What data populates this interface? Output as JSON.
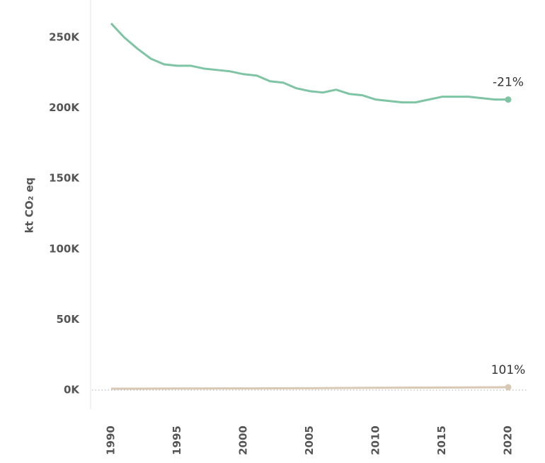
{
  "chart_data": {
    "type": "line",
    "y_label": "kt CO₂ eq",
    "x": [
      1990,
      1991,
      1992,
      1993,
      1994,
      1995,
      1996,
      1997,
      1998,
      1999,
      2000,
      2001,
      2002,
      2003,
      2004,
      2005,
      2006,
      2007,
      2008,
      2009,
      2010,
      2011,
      2012,
      2013,
      2014,
      2015,
      2016,
      2017,
      2018,
      2019,
      2020
    ],
    "series": [
      {
        "color": "#7fc4a4",
        "end_label": "-21%",
        "values": [
          260000,
          250000,
          242000,
          235000,
          231000,
          230000,
          230000,
          228000,
          227000,
          226000,
          224000,
          223000,
          219000,
          218000,
          214000,
          212000,
          211000,
          213000,
          210000,
          209000,
          206000,
          205000,
          204000,
          204000,
          206000,
          208000,
          208000,
          208000,
          207000,
          206000,
          206000
        ]
      },
      {
        "color": "#d9c8b4",
        "end_label": "101%",
        "values": [
          1000,
          1000,
          1020,
          1050,
          1080,
          1100,
          1120,
          1150,
          1170,
          1190,
          1200,
          1220,
          1250,
          1270,
          1300,
          1330,
          1380,
          1440,
          1500,
          1560,
          1620,
          1660,
          1700,
          1730,
          1760,
          1800,
          1840,
          1880,
          1920,
          1970,
          2010
        ]
      }
    ],
    "xlim": [
      1990,
      2020
    ],
    "xticks": [
      1990,
      1995,
      2000,
      2005,
      2010,
      2015,
      2020
    ],
    "ylim": [
      0,
      250000
    ],
    "yticks": [
      {
        "value": 0,
        "label": "0K"
      },
      {
        "value": 50000,
        "label": "50K"
      },
      {
        "value": 100000,
        "label": "100K"
      },
      {
        "value": 150000,
        "label": "150K"
      },
      {
        "value": 200000,
        "label": "200K"
      },
      {
        "value": 250000,
        "label": "250K"
      }
    ]
  }
}
